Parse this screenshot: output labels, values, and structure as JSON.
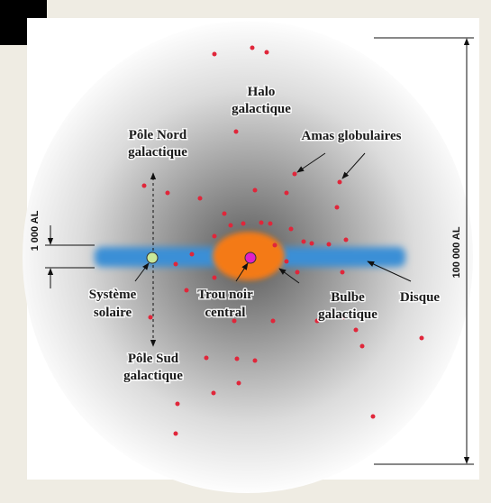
{
  "labels": {
    "halo": [
      "Halo",
      "galactique"
    ],
    "globular_clusters": [
      "Amas globulaires"
    ],
    "north_pole": [
      "Pôle Nord",
      "galactique"
    ],
    "south_pole": [
      "Pôle Sud",
      "galactique"
    ],
    "solar_system": [
      "Système",
      "solaire"
    ],
    "black_hole": [
      "Trou noir",
      "central"
    ],
    "bulge": [
      "Bulbe",
      "galactique"
    ],
    "disk": [
      "Disque"
    ],
    "thickness": "1 000 AL",
    "diameter": "100 000 AL"
  }
}
